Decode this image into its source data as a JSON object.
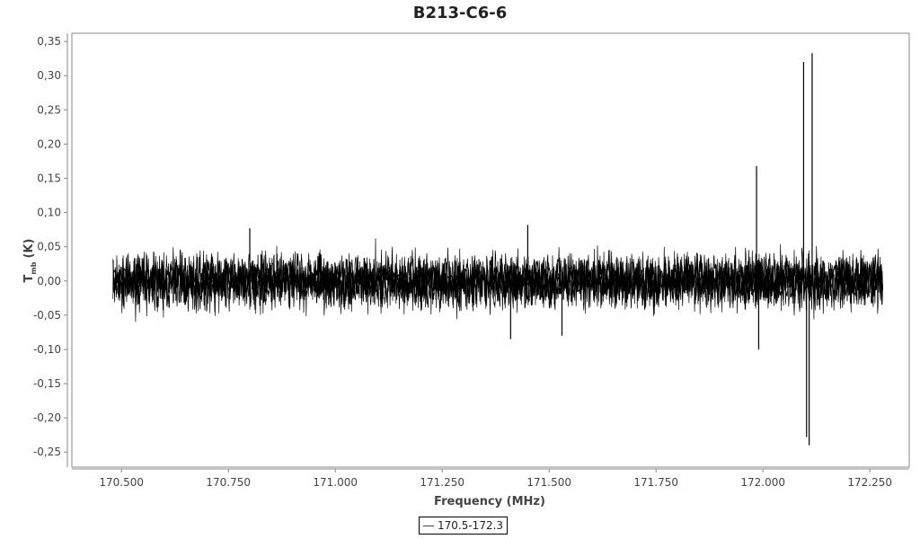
{
  "chart_data": {
    "type": "line",
    "title": "B213-C6-6",
    "xlabel": "Frequency (MHz)",
    "ylabel": "T",
    "ylabel_sub": "mb",
    "ylabel_unit": "(K)",
    "xlim": [
      170.384,
      172.342
    ],
    "ylim": [
      -0.272,
      0.362
    ],
    "x_ticks": [
      "170.500",
      "170.750",
      "171.000",
      "171.250",
      "171.500",
      "171.750",
      "172.000",
      "172.250"
    ],
    "x_tick_values": [
      170.5,
      170.75,
      171.0,
      171.25,
      171.5,
      171.75,
      172.0,
      172.25
    ],
    "y_ticks": [
      "0,35",
      "0,30",
      "0,25",
      "0,20",
      "0,15",
      "0,10",
      "0,05",
      "0,00",
      "-0,05",
      "-0,10",
      "-0,15",
      "-0,20",
      "-0,25"
    ],
    "y_tick_values": [
      0.35,
      0.3,
      0.25,
      0.2,
      0.15,
      0.1,
      0.05,
      0.0,
      -0.05,
      -0.1,
      -0.15,
      -0.2,
      -0.25
    ],
    "grid": false,
    "legend_position": "bottom-center",
    "series": [
      {
        "name": "170.5-172.3",
        "color": "#000000",
        "x_range": [
          170.48,
          172.28
        ],
        "baseline": 0.0,
        "noise_range": [
          -0.06,
          0.065
        ],
        "spikes": [
          {
            "x": 171.985,
            "y": 0.168
          },
          {
            "x": 171.99,
            "y": -0.1
          },
          {
            "x": 172.095,
            "y": 0.32
          },
          {
            "x": 172.115,
            "y": 0.333
          },
          {
            "x": 172.102,
            "y": -0.228
          },
          {
            "x": 172.108,
            "y": -0.24
          },
          {
            "x": 170.8,
            "y": 0.077
          },
          {
            "x": 171.41,
            "y": -0.085
          },
          {
            "x": 171.45,
            "y": 0.082
          },
          {
            "x": 171.53,
            "y": -0.08
          }
        ]
      }
    ]
  }
}
